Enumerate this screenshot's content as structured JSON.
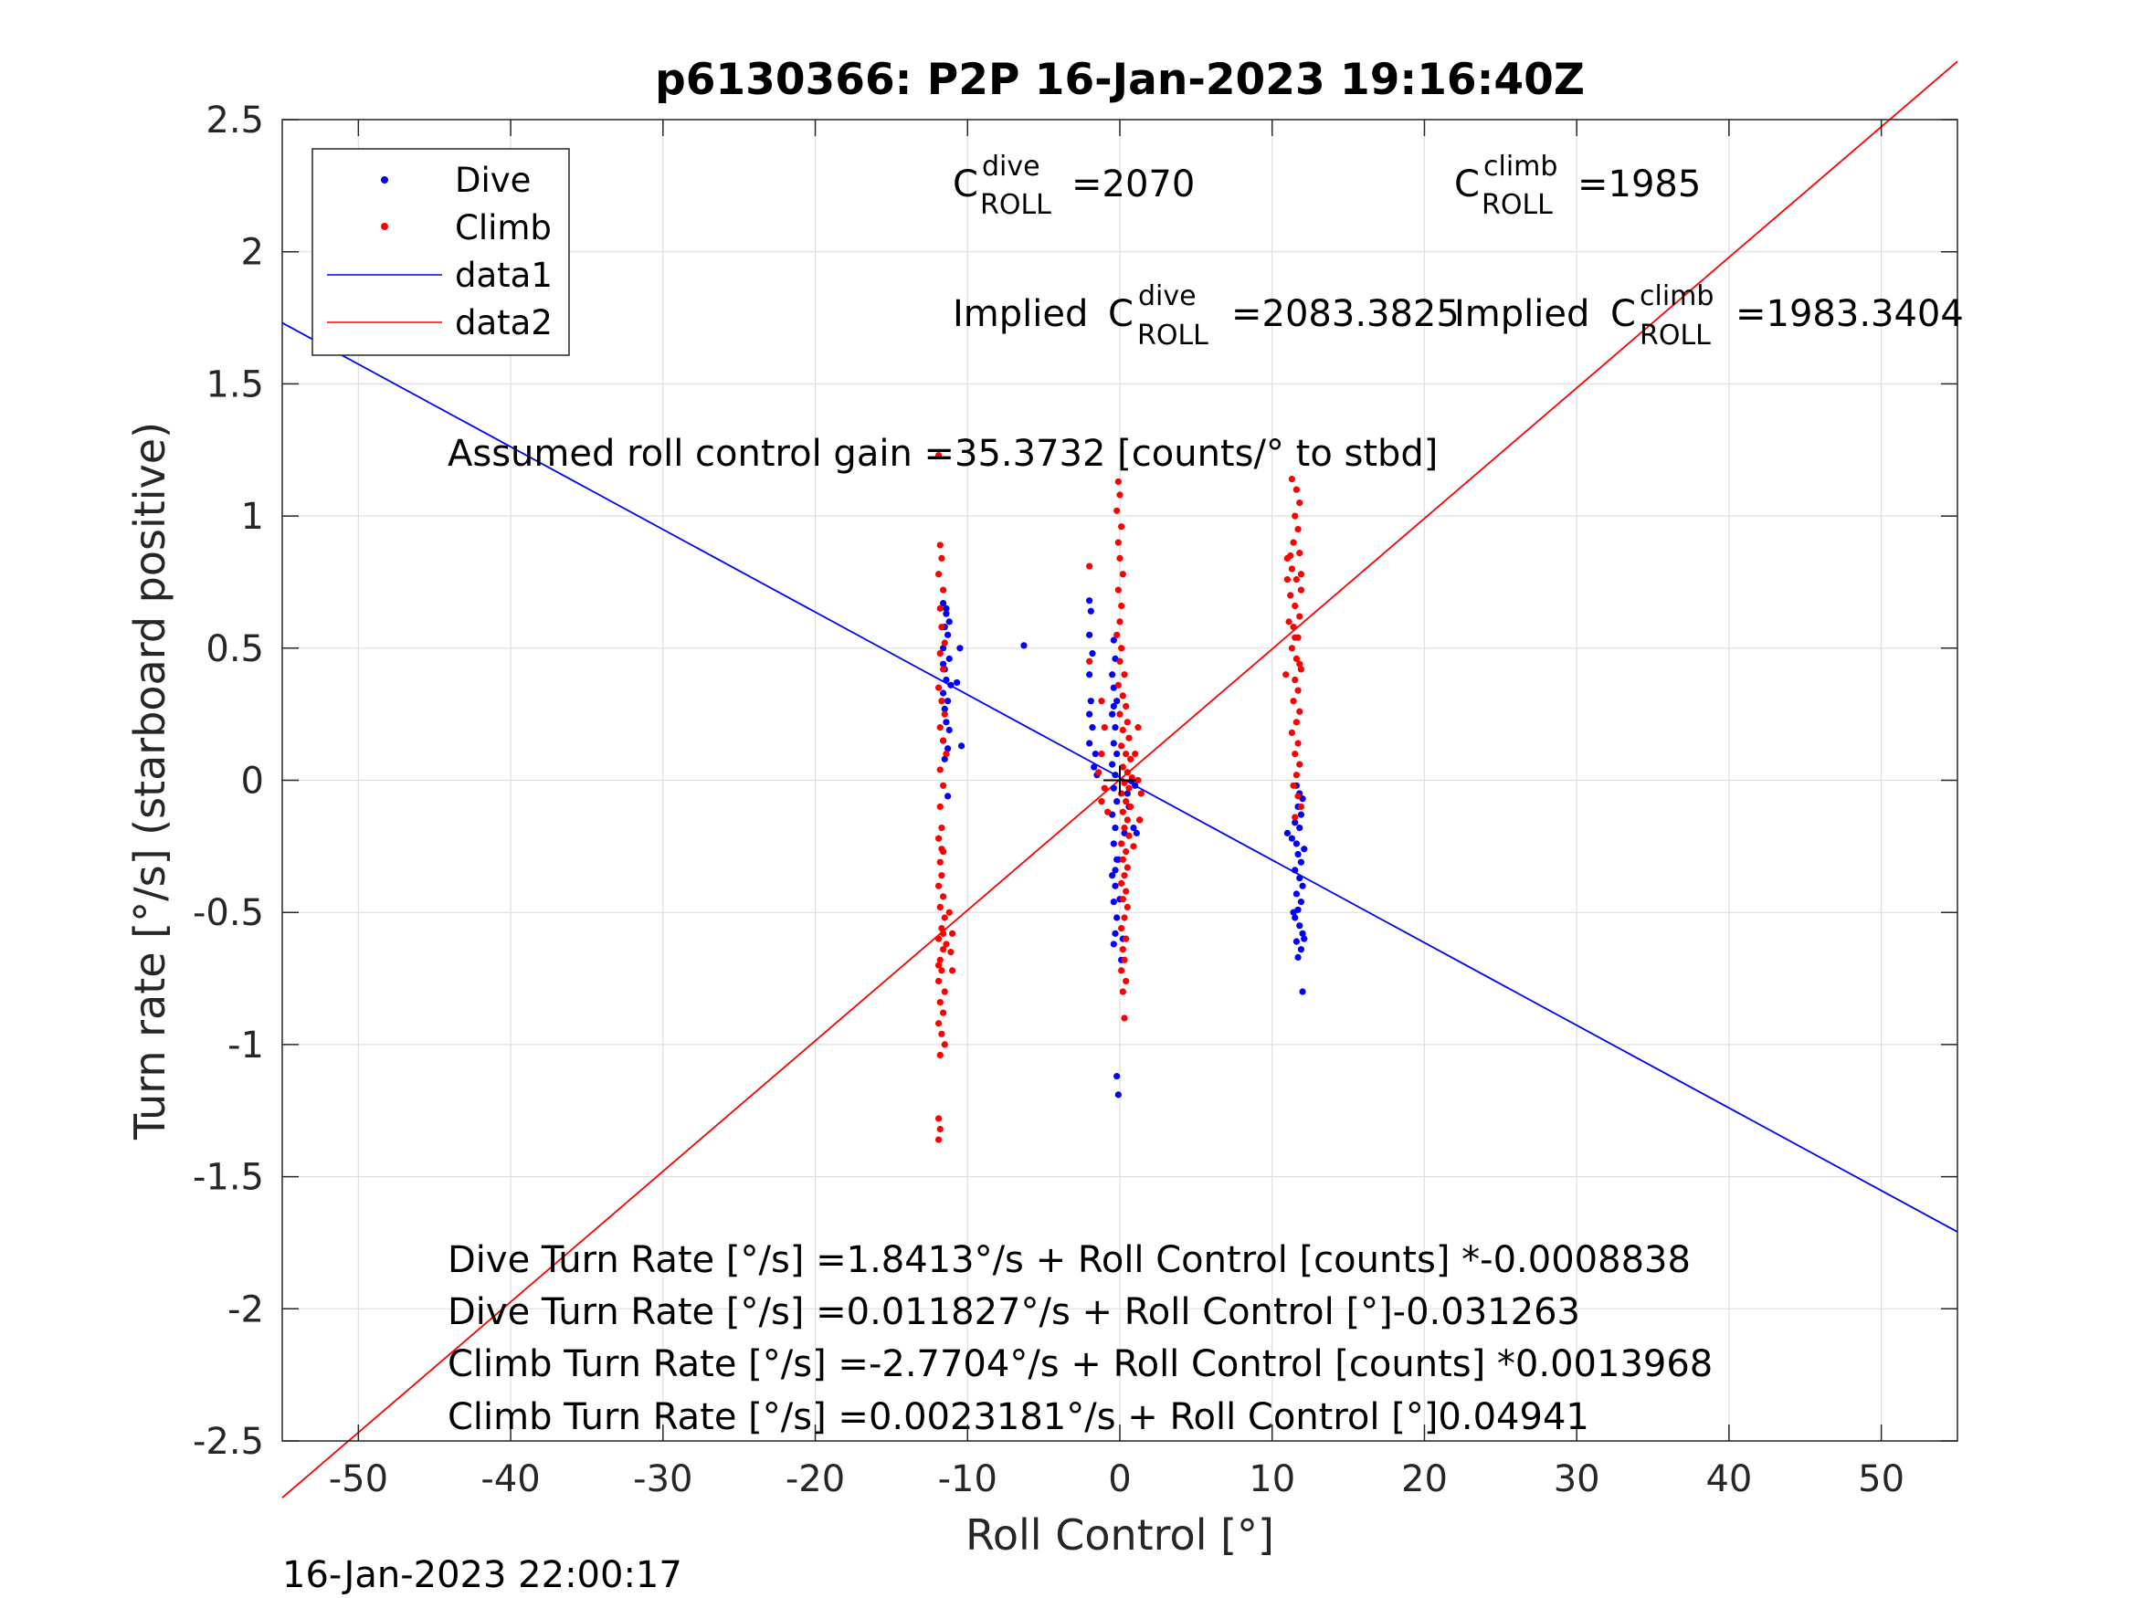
{
  "chart_data": {
    "type": "scatter",
    "title": "p6130366: P2P 16-Jan-2023 19:16:40Z",
    "xlabel": "Roll Control [°]",
    "ylabel": "Turn rate [°/s] (starboard positive)",
    "xlim": [
      -55,
      55
    ],
    "ylim": [
      -2.5,
      2.5
    ],
    "xticks": [
      -50,
      -40,
      -30,
      -20,
      -10,
      0,
      10,
      20,
      30,
      40,
      50
    ],
    "xtick_labels": [
      "-50",
      "-40",
      "-30",
      "-20",
      "-10",
      "0",
      "10",
      "20",
      "30",
      "40",
      "50"
    ],
    "yticks": [
      -2.5,
      -2,
      -1.5,
      -1,
      -0.5,
      0,
      0.5,
      1,
      1.5,
      2,
      2.5
    ],
    "ytick_labels": [
      "-2.5",
      "-2",
      "-1.5",
      "-1",
      "-0.5",
      "0",
      "0.5",
      "1",
      "1.5",
      "2",
      "2.5"
    ],
    "grid": true,
    "legend_position": "top-left",
    "series": [
      {
        "name": "Dive",
        "kind": "scatter",
        "color": "#0000ff",
        "points": [
          [
            -11.6,
            0.67
          ],
          [
            -11.4,
            0.63
          ],
          [
            -11.5,
            0.58
          ],
          [
            -11.3,
            0.55
          ],
          [
            -11.6,
            0.5
          ],
          [
            -11.2,
            0.46
          ],
          [
            -11.5,
            0.42
          ],
          [
            -11.4,
            0.38
          ],
          [
            -11.1,
            0.36
          ],
          [
            -11.6,
            0.33
          ],
          [
            -11.3,
            0.3
          ],
          [
            -11.5,
            0.27
          ],
          [
            -11.4,
            0.22
          ],
          [
            -11.2,
            0.19
          ],
          [
            -11.6,
            0.15
          ],
          [
            -11.3,
            0.12
          ],
          [
            -11.5,
            0.08
          ],
          [
            -11.4,
            0.65
          ],
          [
            -11.2,
            0.6
          ],
          [
            -11.6,
            0.44
          ],
          [
            -10.5,
            0.5
          ],
          [
            -10.7,
            0.37
          ],
          [
            -10.4,
            0.13
          ],
          [
            -11.3,
            -0.06
          ],
          [
            -6.3,
            0.51
          ],
          [
            -2.0,
            0.68
          ],
          [
            -1.9,
            0.64
          ],
          [
            -2.0,
            0.55
          ],
          [
            -1.8,
            0.48
          ],
          [
            -2.0,
            0.4
          ],
          [
            -1.9,
            0.3
          ],
          [
            -2.0,
            0.25
          ],
          [
            -1.8,
            0.2
          ],
          [
            -2.0,
            0.14
          ],
          [
            -1.7,
            0.05
          ],
          [
            -1.6,
            0.1
          ],
          [
            -1.5,
            0.02
          ],
          [
            -0.4,
            0.53
          ],
          [
            -0.3,
            0.46
          ],
          [
            -0.5,
            0.4
          ],
          [
            -0.4,
            0.35
          ],
          [
            -0.2,
            0.3
          ],
          [
            -0.5,
            0.25
          ],
          [
            -0.3,
            0.2
          ],
          [
            -0.4,
            0.14
          ],
          [
            -0.2,
            0.1
          ],
          [
            -0.5,
            0.06
          ],
          [
            -0.3,
            0.02
          ],
          [
            -0.4,
            -0.03
          ],
          [
            -0.2,
            -0.08
          ],
          [
            -0.5,
            -0.13
          ],
          [
            -0.3,
            -0.18
          ],
          [
            -0.4,
            -0.24
          ],
          [
            -0.2,
            -0.3
          ],
          [
            -0.5,
            -0.36
          ],
          [
            -0.3,
            -0.4
          ],
          [
            -0.4,
            -0.46
          ],
          [
            -0.2,
            -0.52
          ],
          [
            -0.3,
            -0.58
          ],
          [
            -0.4,
            -0.62
          ],
          [
            0.1,
            -0.68
          ],
          [
            0.2,
            -0.6
          ],
          [
            0.0,
            -0.45
          ],
          [
            -0.1,
            -0.3
          ],
          [
            0.3,
            -0.2
          ],
          [
            0.5,
            -0.05
          ],
          [
            0.8,
            0.0
          ],
          [
            1.0,
            -0.02
          ],
          [
            1.1,
            -0.2
          ],
          [
            1.3,
            -0.15
          ],
          [
            0.6,
            -0.1
          ],
          [
            0.9,
            -0.18
          ],
          [
            -0.2,
            -1.12
          ],
          [
            -0.1,
            -1.19
          ],
          [
            -0.4,
            0.28
          ],
          [
            -0.3,
            -0.34
          ],
          [
            11.6,
            -0.02
          ],
          [
            11.8,
            -0.05
          ],
          [
            12.0,
            -0.07
          ],
          [
            11.7,
            -0.1
          ],
          [
            11.9,
            -0.13
          ],
          [
            11.5,
            -0.16
          ],
          [
            11.8,
            -0.18
          ],
          [
            11.0,
            -0.2
          ],
          [
            11.3,
            -0.22
          ],
          [
            11.6,
            -0.24
          ],
          [
            12.1,
            -0.26
          ],
          [
            11.7,
            -0.28
          ],
          [
            11.9,
            -0.31
          ],
          [
            11.5,
            -0.34
          ],
          [
            11.8,
            -0.37
          ],
          [
            12.0,
            -0.4
          ],
          [
            11.6,
            -0.43
          ],
          [
            11.9,
            -0.46
          ],
          [
            11.7,
            -0.49
          ],
          [
            11.5,
            -0.52
          ],
          [
            11.8,
            -0.55
          ],
          [
            12.0,
            -0.58
          ],
          [
            11.6,
            -0.61
          ],
          [
            11.9,
            -0.64
          ],
          [
            11.7,
            -0.67
          ],
          [
            12.1,
            -0.6
          ],
          [
            11.4,
            -0.5
          ],
          [
            12.0,
            -0.8
          ]
        ]
      },
      {
        "name": "Climb",
        "kind": "scatter",
        "color": "#ff0000",
        "points": [
          [
            -11.9,
            1.23
          ],
          [
            -11.8,
            0.89
          ],
          [
            -11.7,
            0.84
          ],
          [
            -11.9,
            0.78
          ],
          [
            -11.6,
            0.72
          ],
          [
            -11.8,
            0.65
          ],
          [
            -11.7,
            0.58
          ],
          [
            -11.5,
            0.52
          ],
          [
            -11.8,
            0.48
          ],
          [
            -11.6,
            0.42
          ],
          [
            -11.9,
            0.35
          ],
          [
            -11.7,
            0.3
          ],
          [
            -11.5,
            0.25
          ],
          [
            -11.8,
            0.2
          ],
          [
            -11.6,
            0.15
          ],
          [
            -11.4,
            0.1
          ],
          [
            -11.8,
            0.04
          ],
          [
            -11.6,
            -0.02
          ],
          [
            -11.8,
            -0.1
          ],
          [
            -11.7,
            -0.18
          ],
          [
            -11.9,
            -0.22
          ],
          [
            -11.6,
            -0.27
          ],
          [
            -11.8,
            -0.31
          ],
          [
            -11.7,
            -0.36
          ],
          [
            -11.9,
            -0.4
          ],
          [
            -11.6,
            -0.44
          ],
          [
            -11.8,
            -0.48
          ],
          [
            -11.5,
            -0.52
          ],
          [
            -11.7,
            -0.56
          ],
          [
            -11.9,
            -0.6
          ],
          [
            -11.6,
            -0.64
          ],
          [
            -11.8,
            -0.68
          ],
          [
            -11.7,
            -0.72
          ],
          [
            -11.9,
            -0.76
          ],
          [
            -11.5,
            -0.8
          ],
          [
            -11.8,
            -0.84
          ],
          [
            -11.6,
            -0.88
          ],
          [
            -11.9,
            -0.92
          ],
          [
            -11.7,
            -0.96
          ],
          [
            -11.5,
            -1.0
          ],
          [
            -11.8,
            -1.04
          ],
          [
            -11.6,
            -0.58
          ],
          [
            -11.9,
            -0.7
          ],
          [
            -11.4,
            -0.62
          ],
          [
            -11.2,
            -0.5
          ],
          [
            -11.0,
            -0.58
          ],
          [
            -11.1,
            -0.65
          ],
          [
            -11.0,
            -0.72
          ],
          [
            -11.9,
            -1.28
          ],
          [
            -11.8,
            -1.32
          ],
          [
            -11.9,
            -1.36
          ],
          [
            -11.7,
            -0.26
          ],
          [
            -2.0,
            0.81
          ],
          [
            -2.0,
            0.45
          ],
          [
            -1.2,
            0.3
          ],
          [
            -1.0,
            0.2
          ],
          [
            -1.2,
            0.1
          ],
          [
            -1.4,
            0.03
          ],
          [
            -1.0,
            -0.03
          ],
          [
            -1.2,
            -0.08
          ],
          [
            -0.8,
            -0.12
          ],
          [
            -0.1,
            1.13
          ],
          [
            0.0,
            1.08
          ],
          [
            -0.2,
            1.02
          ],
          [
            0.1,
            0.96
          ],
          [
            -0.1,
            0.9
          ],
          [
            0.0,
            0.84
          ],
          [
            0.2,
            0.78
          ],
          [
            -0.1,
            0.72
          ],
          [
            0.1,
            0.66
          ],
          [
            0.0,
            0.6
          ],
          [
            -0.2,
            0.55
          ],
          [
            0.1,
            0.5
          ],
          [
            0.0,
            0.45
          ],
          [
            0.3,
            0.4
          ],
          [
            -0.1,
            0.36
          ],
          [
            0.2,
            0.32
          ],
          [
            0.4,
            0.28
          ],
          [
            0.0,
            0.25
          ],
          [
            0.5,
            0.22
          ],
          [
            0.2,
            0.19
          ],
          [
            0.6,
            0.16
          ],
          [
            0.1,
            0.13
          ],
          [
            0.4,
            0.1
          ],
          [
            0.7,
            0.08
          ],
          [
            0.2,
            0.05
          ],
          [
            0.5,
            0.03
          ],
          [
            0.8,
            0.01
          ],
          [
            0.3,
            -0.01
          ],
          [
            0.6,
            -0.03
          ],
          [
            0.1,
            -0.05
          ],
          [
            0.4,
            -0.08
          ],
          [
            0.7,
            -0.1
          ],
          [
            0.2,
            -0.12
          ],
          [
            0.5,
            -0.15
          ],
          [
            0.3,
            -0.18
          ],
          [
            0.6,
            -0.21
          ],
          [
            0.1,
            -0.24
          ],
          [
            0.4,
            -0.27
          ],
          [
            0.2,
            -0.3
          ],
          [
            0.5,
            -0.33
          ],
          [
            0.3,
            -0.36
          ],
          [
            0.1,
            -0.39
          ],
          [
            0.4,
            -0.42
          ],
          [
            0.2,
            -0.45
          ],
          [
            0.5,
            -0.48
          ],
          [
            0.3,
            -0.52
          ],
          [
            0.1,
            -0.56
          ],
          [
            0.4,
            -0.6
          ],
          [
            0.2,
            -0.64
          ],
          [
            0.3,
            -0.68
          ],
          [
            0.1,
            -0.72
          ],
          [
            0.4,
            -0.76
          ],
          [
            0.2,
            -0.8
          ],
          [
            0.3,
            -0.9
          ],
          [
            1.2,
            0.0
          ],
          [
            1.4,
            -0.05
          ],
          [
            1.3,
            -0.15
          ],
          [
            1.0,
            0.1
          ],
          [
            1.2,
            0.2
          ],
          [
            0.9,
            -0.25
          ],
          [
            11.3,
            1.14
          ],
          [
            11.6,
            1.1
          ],
          [
            11.8,
            1.05
          ],
          [
            11.5,
            1.0
          ],
          [
            11.7,
            0.95
          ],
          [
            11.4,
            0.9
          ],
          [
            11.8,
            0.86
          ],
          [
            11.0,
            0.84
          ],
          [
            11.3,
            0.8
          ],
          [
            11.6,
            0.76
          ],
          [
            11.9,
            0.72
          ],
          [
            11.2,
            0.7
          ],
          [
            11.5,
            0.66
          ],
          [
            11.8,
            0.62
          ],
          [
            11.4,
            0.58
          ],
          [
            11.7,
            0.54
          ],
          [
            11.3,
            0.5
          ],
          [
            11.6,
            0.46
          ],
          [
            11.9,
            0.42
          ],
          [
            11.5,
            0.38
          ],
          [
            11.7,
            0.34
          ],
          [
            11.4,
            0.3
          ],
          [
            11.8,
            0.26
          ],
          [
            11.6,
            0.22
          ],
          [
            11.3,
            0.18
          ],
          [
            11.7,
            0.14
          ],
          [
            11.5,
            0.1
          ],
          [
            11.8,
            0.06
          ],
          [
            11.6,
            0.02
          ],
          [
            11.4,
            -0.02
          ],
          [
            11.7,
            -0.06
          ],
          [
            11.9,
            -0.1
          ],
          [
            11.5,
            -0.14
          ],
          [
            10.9,
            0.4
          ],
          [
            11.0,
            0.76
          ],
          [
            11.1,
            0.6
          ],
          [
            11.2,
            0.85
          ],
          [
            11.9,
            0.78
          ],
          [
            11.5,
            0.54
          ],
          [
            11.8,
            0.44
          ]
        ]
      },
      {
        "name": "data1",
        "kind": "line",
        "color": "#0000ff",
        "x": [
          -55,
          55
        ],
        "y": [
          1.731,
          -1.709
        ]
      },
      {
        "name": "data2",
        "kind": "line",
        "color": "#ff0000",
        "x": [
          -55,
          55
        ],
        "y": [
          -2.715,
          2.72
        ]
      }
    ],
    "annotations": [
      {
        "id": "c-dive",
        "base": "C",
        "sup": "dive",
        "sub": "ROLL",
        "value": "=2070"
      },
      {
        "id": "c-climb",
        "base": "C",
        "sup": "climb",
        "sub": "ROLL",
        "value": "=1985"
      },
      {
        "id": "implied-dive",
        "prefix": "Implied ",
        "base": "C",
        "sup": "dive",
        "sub": "ROLL",
        "value": "=2083.3825"
      },
      {
        "id": "implied-climb",
        "prefix": "Implied ",
        "base": "C",
        "sup": "climb",
        "sub": "ROLL",
        "value": "=1983.3404"
      },
      {
        "id": "gain",
        "text": "Assumed roll control gain =35.3732 [counts/° to stbd]"
      },
      {
        "id": "dive-counts",
        "text": "Dive Turn Rate [°/s] =1.8413°/s + Roll Control [counts] *-0.0008838"
      },
      {
        "id": "dive-deg",
        "text": "Dive Turn Rate [°/s] =0.011827°/s + Roll Control [°]-0.031263"
      },
      {
        "id": "climb-counts",
        "text": "Climb Turn Rate [°/s] =-2.7704°/s + Roll Control [counts] *0.0013968"
      },
      {
        "id": "climb-deg",
        "text": "Climb Turn Rate [°/s] =0.0023181°/s + Roll Control [°]0.04941"
      }
    ],
    "footer": "16-Jan-2023 22:00:17"
  }
}
